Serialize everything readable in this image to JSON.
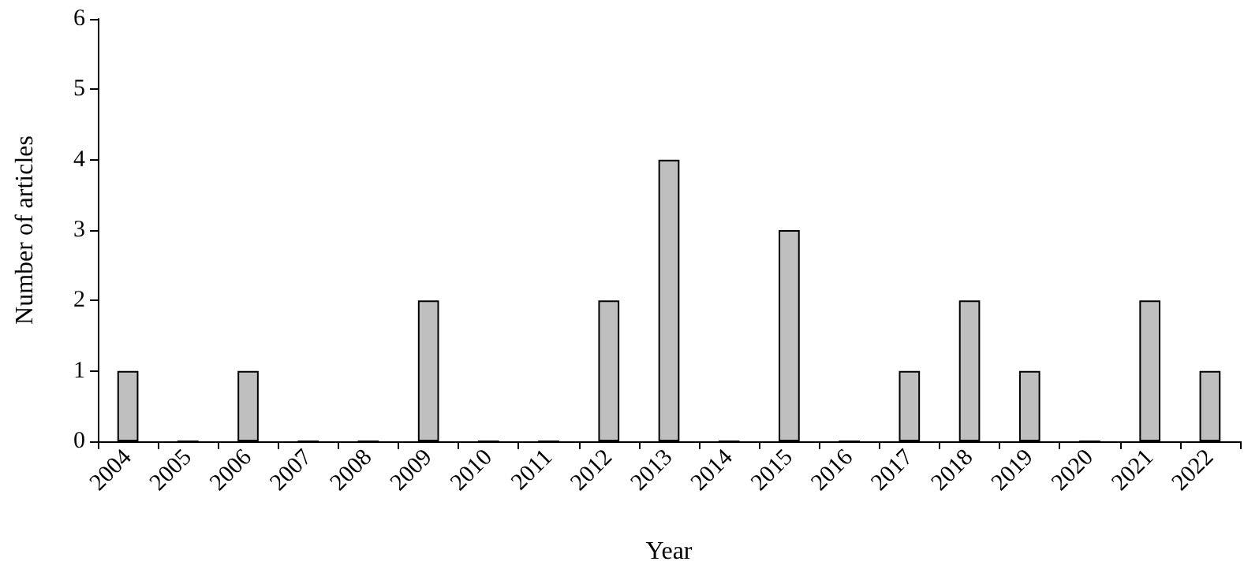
{
  "chart_data": {
    "type": "bar",
    "xlabel": "Year",
    "ylabel": "Number of articles",
    "categories": [
      "2004",
      "2005",
      "2006",
      "2007",
      "2008",
      "2009",
      "2010",
      "2011",
      "2012",
      "2013",
      "2014",
      "2015",
      "2016",
      "2017",
      "2018",
      "2019",
      "2020",
      "2021",
      "2022"
    ],
    "values": [
      1,
      0,
      1,
      0,
      0,
      2,
      0,
      0,
      2,
      4,
      0,
      3,
      0,
      1,
      2,
      1,
      0,
      2,
      1
    ],
    "color": "#bfbfbf",
    "ylim": [
      0,
      6
    ],
    "yticks": [
      0,
      1,
      2,
      3,
      4,
      5,
      6
    ],
    "grid": false
  }
}
